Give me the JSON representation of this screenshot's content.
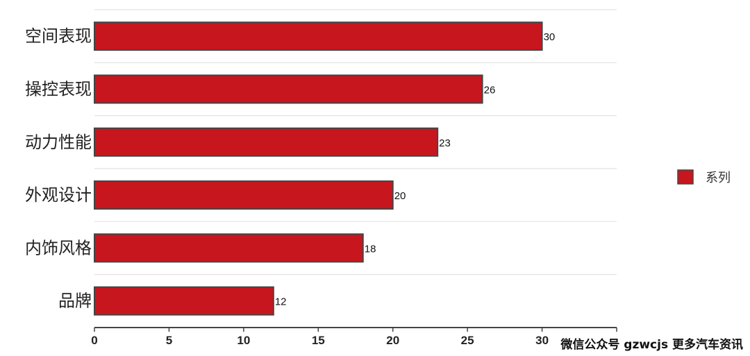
{
  "chart_data": {
    "type": "bar",
    "orientation": "horizontal",
    "categories": [
      "空间表现",
      "操控表现",
      "动力性能",
      "外观设计",
      "内饰风格",
      "品牌"
    ],
    "series": [
      {
        "name": "系列",
        "values": [
          30,
          26,
          23,
          20,
          18,
          12
        ],
        "color": "#c8161e"
      }
    ],
    "xlim": [
      0,
      35
    ],
    "xticks": [
      0,
      5,
      10,
      15,
      20,
      25,
      30,
      35
    ],
    "grid": true,
    "legend_position": "right",
    "data_labels": true
  },
  "watermark": "微信公众号 gzwcjs 更多汽车资讯"
}
